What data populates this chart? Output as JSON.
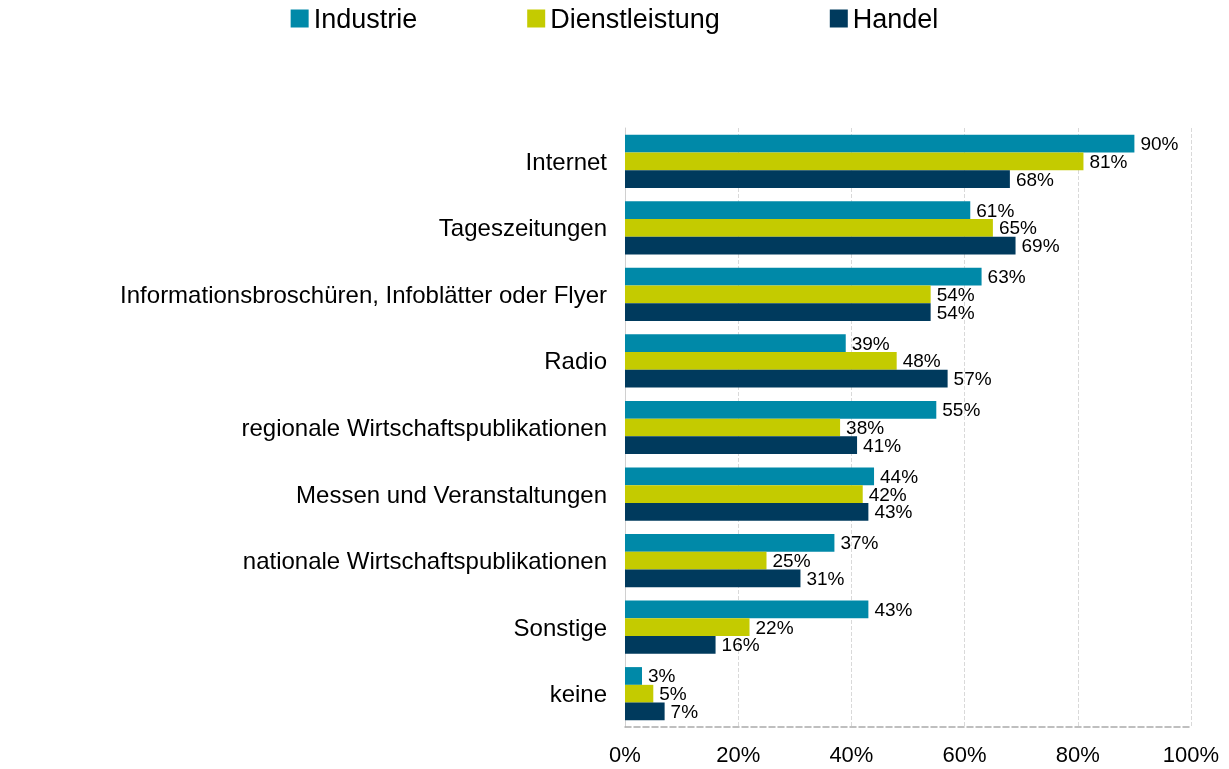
{
  "chart_data": {
    "type": "bar",
    "orientation": "horizontal",
    "categories": [
      "Internet",
      "Tageszeitungen",
      "Informationsbroschüren, Infoblätter oder Flyer",
      "Radio",
      "regionale Wirtschaftspublikationen",
      "Messen und Veranstaltungen",
      "nationale Wirtschaftspublikationen",
      "Sonstige",
      "keine"
    ],
    "series": [
      {
        "name": "Industrie",
        "color": "#0089a8",
        "values": [
          90,
          61,
          63,
          39,
          55,
          44,
          37,
          43,
          3
        ],
        "value_labels": [
          "90%",
          "61%",
          "63%",
          "39%",
          "55%",
          "44%",
          "37%",
          "43%",
          "3%"
        ]
      },
      {
        "name": "Dienstleistung",
        "color": "#c4cb00",
        "values": [
          81,
          65,
          54,
          48,
          38,
          42,
          25,
          22,
          5
        ],
        "value_labels": [
          "81%",
          "65%",
          "54%",
          "48%",
          "38%",
          "42%",
          "25%",
          "22%",
          "5%"
        ]
      },
      {
        "name": "Handel",
        "color": "#003a5d",
        "values": [
          68,
          69,
          54,
          57,
          41,
          43,
          31,
          16,
          7
        ],
        "value_labels": [
          "68%",
          "69%",
          "54%",
          "57%",
          "41%",
          "43%",
          "31%",
          "16%",
          "7%"
        ]
      }
    ],
    "xlim": [
      0,
      100
    ],
    "xticks": [
      {
        "value": 0,
        "label": "0%"
      },
      {
        "value": 20,
        "label": "20%"
      },
      {
        "value": 40,
        "label": "40%"
      },
      {
        "value": 60,
        "label": "60%"
      },
      {
        "value": 80,
        "label": "80%"
      },
      {
        "value": 100,
        "label": "100%"
      }
    ],
    "grid": "x",
    "legend": "top"
  }
}
